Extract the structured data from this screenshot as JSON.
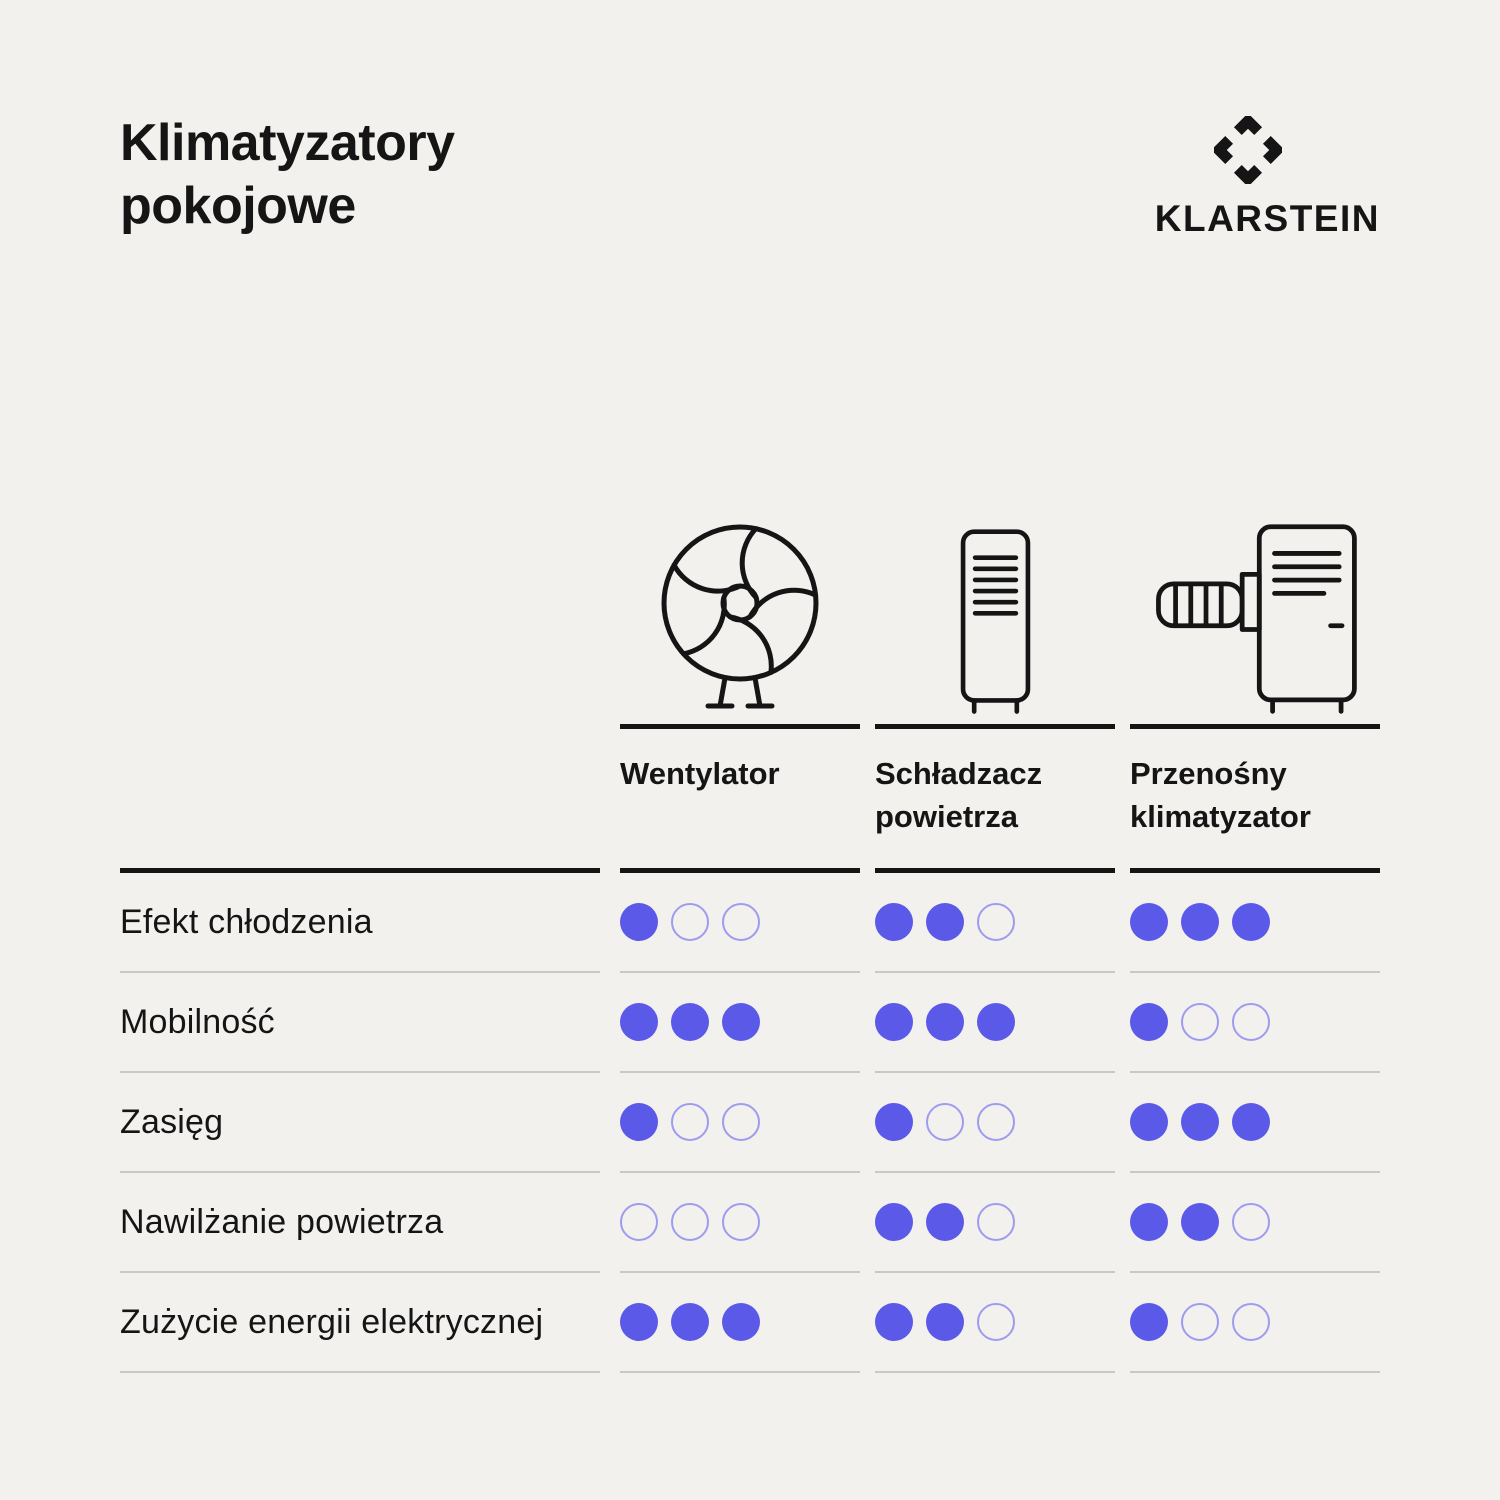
{
  "page": {
    "title": "Klimatyzatory pokojowe",
    "brand": "KLARSTEIN"
  },
  "table": {
    "max_rating": 3,
    "columns": [
      {
        "label": "Wentylator",
        "icon": "fan-icon"
      },
      {
        "label": "Schładzacz powietrza",
        "icon": "air-cooler-icon"
      },
      {
        "label": "Przenośny klimatyzator",
        "icon": "portable-ac-icon"
      }
    ],
    "rows": [
      {
        "label": "Efekt chłodzenia",
        "ratings": [
          1,
          2,
          3
        ]
      },
      {
        "label": "Mobilność",
        "ratings": [
          3,
          3,
          1
        ]
      },
      {
        "label": "Zasięg",
        "ratings": [
          1,
          1,
          3
        ]
      },
      {
        "label": "Nawilżanie powietrza",
        "ratings": [
          0,
          2,
          2
        ]
      },
      {
        "label": "Zużycie energii elektrycznej",
        "ratings": [
          3,
          2,
          1
        ]
      }
    ]
  },
  "chart_data": {
    "type": "table",
    "title": "Klimatyzatory pokojowe",
    "columns": [
      "Wentylator",
      "Schładzacz powietrza",
      "Przenośny klimatyzator"
    ],
    "rows": [
      "Efekt chłodzenia",
      "Mobilność",
      "Zasięg",
      "Nawilżanie powietrza",
      "Zużycie energii elektrycznej"
    ],
    "values": [
      [
        1,
        2,
        3
      ],
      [
        3,
        3,
        1
      ],
      [
        1,
        1,
        3
      ],
      [
        0,
        2,
        2
      ],
      [
        3,
        2,
        1
      ]
    ],
    "value_range": [
      0,
      3
    ],
    "legend": "filled dots out of 3 indicate performance level"
  },
  "colors": {
    "background": "#f2f1ee",
    "text": "#151515",
    "dot_filled": "#5b5ae8",
    "dot_empty_stroke": "#9d9cf0",
    "rule_light": "#c9c8c4"
  }
}
